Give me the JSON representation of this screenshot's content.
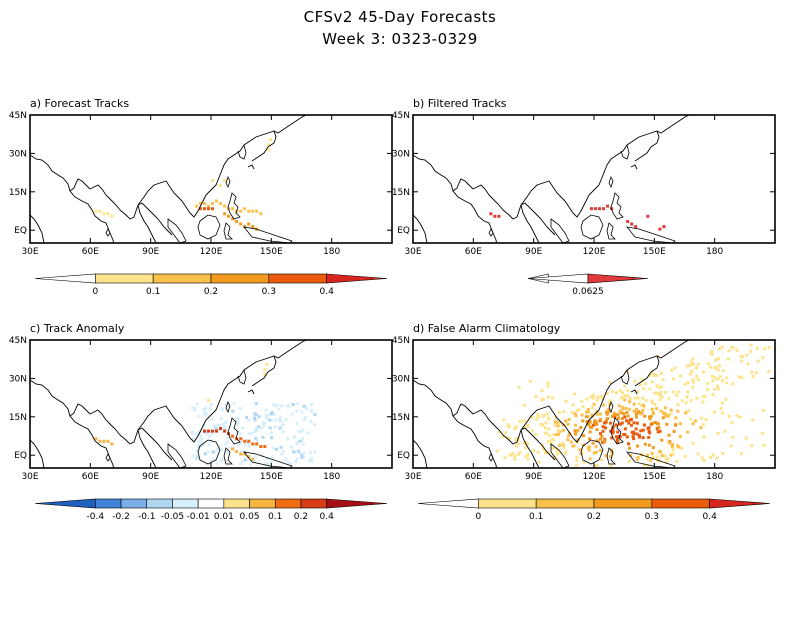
{
  "header": {
    "title": "CFSv2 45-Day Forecasts",
    "subtitle": "Week 3: 0323-0329"
  },
  "axes": {
    "lat_labels": [
      "45N",
      "30N",
      "15N",
      "EQ"
    ],
    "lon_labels": [
      "30E",
      "60E",
      "90E",
      "120E",
      "150E",
      "180"
    ],
    "lon_range": [
      30,
      210
    ],
    "lat_range": [
      -5,
      45
    ]
  },
  "colors": {
    "land_outline": "#000000",
    "frame": "#000000"
  },
  "panels": [
    {
      "id": "a",
      "title": "a) Forecast Tracks",
      "colorbar": {
        "labels": [
          "0",
          "0.1",
          "0.2",
          "0.3",
          "0.4"
        ],
        "colors": [
          "#ffffff",
          "#fde48c",
          "#f9c04b",
          "#f29a1e",
          "#ea5b0c",
          "#d7261e"
        ]
      }
    },
    {
      "id": "b",
      "title": "b) Filtered Tracks",
      "colorbar": {
        "labels": [
          "0.0625"
        ],
        "colors": [
          "#ffffff",
          "#e23a3a"
        ]
      }
    },
    {
      "id": "c",
      "title": "c) Track Anomaly",
      "colorbar": {
        "labels": [
          "-0.4",
          "-0.2",
          "-0.1",
          "-0.05",
          "-0.01",
          "0.01",
          "0.05",
          "0.1",
          "0.2",
          "0.4"
        ],
        "colors": [
          "#1e5fbf",
          "#3f83d6",
          "#79aee6",
          "#b0d6f2",
          "#d7effa",
          "#ffffff",
          "#fde48c",
          "#f7b440",
          "#ee6d12",
          "#d73c16",
          "#a50f15"
        ]
      }
    },
    {
      "id": "d",
      "title": "d) False Alarm Climatology",
      "colorbar": {
        "labels": [
          "0",
          "0.1",
          "0.2",
          "0.3",
          "0.4"
        ],
        "colors": [
          "#ffffff",
          "#fde48c",
          "#f9c04b",
          "#f29a1e",
          "#ea5b0c",
          "#d7261e"
        ]
      }
    }
  ]
}
